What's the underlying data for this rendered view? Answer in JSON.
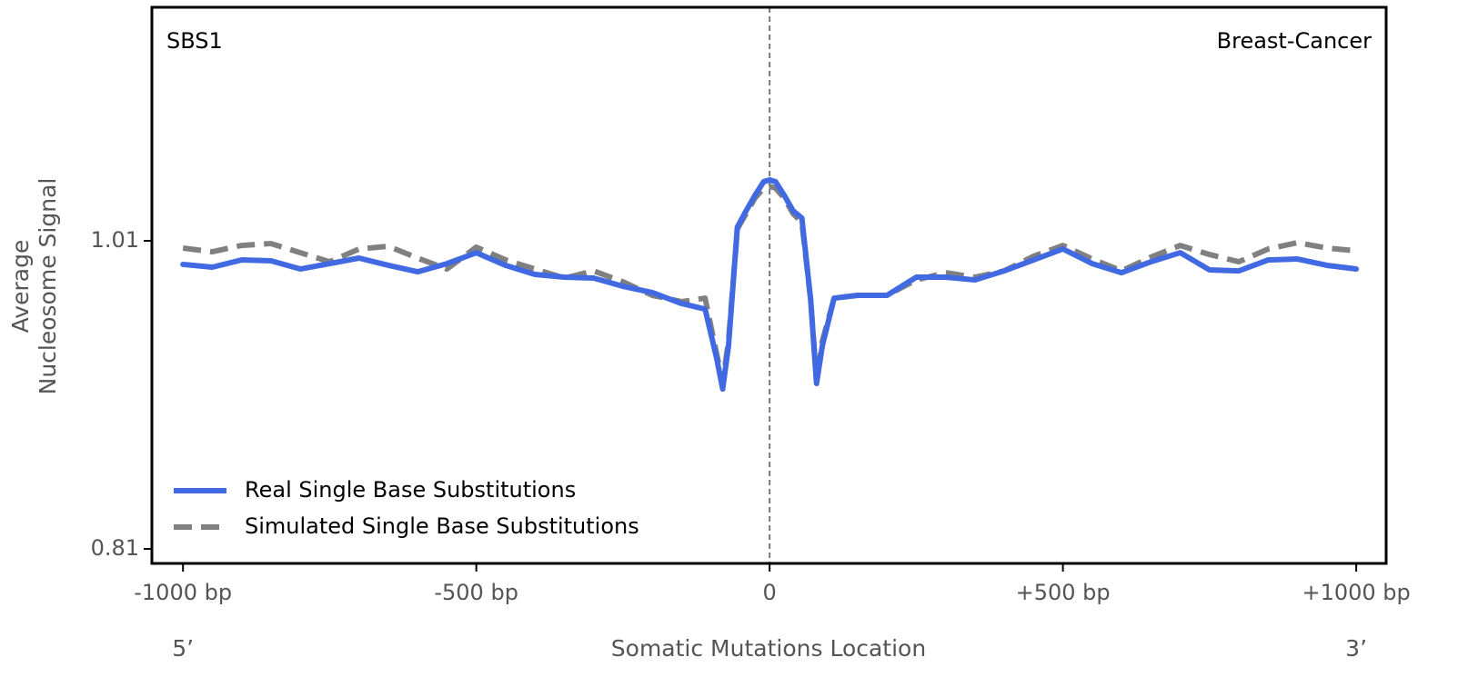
{
  "chart_data": {
    "type": "line",
    "title": "SBS1",
    "subtitle": "Breast-Cancer",
    "xlabel": "Somatic Mutations Location",
    "ylabel": [
      "Average",
      "Nucleosome Signal"
    ],
    "x_end_labels": [
      "5’",
      "3’"
    ],
    "x": [
      -1000,
      -950,
      -900,
      -850,
      -800,
      -750,
      -700,
      -650,
      -600,
      -550,
      -500,
      -450,
      -400,
      -350,
      -300,
      -250,
      -200,
      -150,
      -110,
      -90,
      -80,
      -70,
      -55,
      -40,
      -25,
      -10,
      0,
      10,
      25,
      40,
      55,
      70,
      80,
      90,
      110,
      150,
      200,
      250,
      300,
      350,
      400,
      450,
      500,
      550,
      600,
      650,
      700,
      750,
      800,
      850,
      900,
      950,
      1000
    ],
    "series": [
      {
        "name": "Real Single Base Substitutions",
        "color": "#4169e1",
        "dash": false,
        "values": [
          0.9947,
          0.9929,
          0.9976,
          0.997,
          0.9917,
          0.9952,
          0.9988,
          0.9941,
          0.9899,
          0.9952,
          1.0023,
          0.9941,
          0.9882,
          0.9864,
          0.9858,
          0.9805,
          0.9764,
          0.9693,
          0.9657,
          0.9333,
          0.9138,
          0.9421,
          1.0189,
          1.0295,
          1.0395,
          1.0484,
          1.0495,
          1.0484,
          1.0395,
          1.0295,
          1.0248,
          0.9716,
          0.9174,
          0.9421,
          0.9728,
          0.9746,
          0.9746,
          0.9864,
          0.9864,
          0.9846,
          0.9905,
          0.9976,
          1.0047,
          0.9952,
          0.9893,
          0.9964,
          1.0023,
          0.9911,
          0.9905,
          0.9976,
          0.9982,
          0.9941,
          0.9917
        ]
      },
      {
        "name": "Simulated Single Base Substitutions",
        "color": "#808080",
        "dash": true,
        "values": [
          1.0053,
          1.0029,
          1.007,
          1.0082,
          1.0023,
          0.9964,
          1.0047,
          1.0065,
          0.9988,
          0.9917,
          1.0059,
          0.9976,
          0.9917,
          0.9858,
          0.9905,
          0.9834,
          0.9746,
          0.9705,
          0.9728,
          0.9362,
          0.9185,
          0.9451,
          1.0177,
          1.0277,
          1.0377,
          1.0442,
          1.0454,
          1.0442,
          1.0377,
          1.0277,
          1.0218,
          0.9716,
          0.9197,
          0.9451,
          0.9728,
          0.9746,
          0.9746,
          0.9846,
          0.9893,
          0.9864,
          0.9905,
          1.0,
          1.007,
          0.9982,
          0.9905,
          0.9994,
          1.007,
          1.0011,
          0.9964,
          1.0047,
          1.0088,
          1.0053,
          1.0035
        ]
      }
    ],
    "xlim": [
      -1053,
      1051
    ],
    "ylim": [
      0.8006,
      1.1616
    ],
    "xticks": [
      {
        "value": -1000,
        "label": "-1000 bp"
      },
      {
        "value": -500,
        "label": "-500 bp"
      },
      0,
      {
        "value": 500,
        "label": "+500 bp"
      },
      {
        "value": 1000,
        "label": "+1000 bp"
      }
    ],
    "yticks": [
      0.81,
      1.01
    ],
    "vline": 0,
    "legend": "lower left"
  }
}
